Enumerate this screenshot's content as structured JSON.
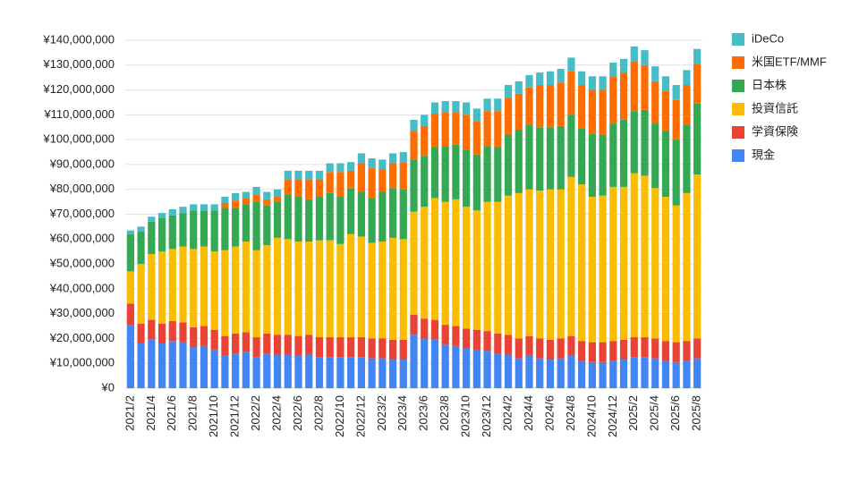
{
  "chart_data": {
    "type": "stacked_bar",
    "categories": [
      "2021/2",
      null,
      "2021/4",
      null,
      "2021/6",
      null,
      "2021/8",
      null,
      "2021/10",
      null,
      "2021/12",
      null,
      "2022/2",
      null,
      "2022/4",
      null,
      "2022/6",
      null,
      "2022/8",
      null,
      "2022/10",
      null,
      "2022/12",
      null,
      "2023/2",
      null,
      "2023/4",
      null,
      "2023/6",
      null,
      "2023/8",
      null,
      "2023/10",
      null,
      "2023/12",
      null,
      "2024/2",
      null,
      "2024/4",
      null,
      "2024/6",
      null,
      "2024/8",
      null,
      "2024/10",
      null,
      "2024/12",
      null,
      "2025/2",
      null,
      "2025/4",
      null,
      "2025/6",
      null,
      "2025/8"
    ],
    "series": [
      {
        "name": "現金",
        "color": "#4285f4",
        "values": [
          25500000,
          18000000,
          19500000,
          18000000,
          19000000,
          18500000,
          16500000,
          17000000,
          15500000,
          13000000,
          14000000,
          14500000,
          12500000,
          14000000,
          13500000,
          13500000,
          13000000,
          13500000,
          12500000,
          12500000,
          12500000,
          12500000,
          12500000,
          12000000,
          12000000,
          11500000,
          11500000,
          21500000,
          20000000,
          19500000,
          17500000,
          17000000,
          16000000,
          15500000,
          15000000,
          14000000,
          13500000,
          12000000,
          13000000,
          12000000,
          11500000,
          12000000,
          13000000,
          11000000,
          10500000,
          10500000,
          11000000,
          11500000,
          12500000,
          12500000,
          12000000,
          11000000,
          10500000,
          11000000,
          12000000
        ]
      },
      {
        "name": "学資保険",
        "color": "#ea4335",
        "values": [
          8500000,
          8000000,
          8000000,
          8000000,
          8000000,
          8000000,
          8000000,
          8000000,
          8000000,
          8000000,
          8000000,
          8000000,
          8000000,
          8000000,
          8000000,
          8000000,
          8000000,
          8000000,
          8000000,
          8000000,
          8000000,
          8000000,
          8000000,
          8000000,
          8000000,
          8000000,
          8000000,
          8000000,
          8000000,
          8000000,
          8000000,
          8000000,
          8000000,
          8000000,
          8000000,
          8000000,
          8000000,
          8000000,
          8000000,
          8000000,
          8000000,
          8000000,
          8000000,
          8000000,
          8000000,
          8000000,
          8000000,
          8000000,
          8000000,
          8000000,
          8000000,
          8000000,
          8000000,
          8000000,
          8000000
        ]
      },
      {
        "name": "投資信託",
        "color": "#fbbc04",
        "values": [
          13000000,
          24000000,
          26500000,
          29000000,
          29000000,
          30500000,
          31500000,
          32000000,
          31500000,
          34500000,
          35000000,
          36500000,
          35000000,
          35500000,
          39000000,
          38500000,
          38000000,
          37500000,
          39000000,
          39000000,
          37500000,
          41500000,
          40500000,
          38500000,
          39000000,
          41000000,
          40500000,
          41500000,
          45000000,
          49000000,
          49500000,
          51000000,
          49000000,
          48000000,
          52000000,
          53000000,
          56000000,
          58500000,
          59000000,
          59500000,
          60500000,
          60000000,
          64000000,
          63000000,
          58500000,
          59000000,
          62000000,
          61500000,
          66000000,
          65000000,
          60500000,
          58000000,
          55000000,
          59500000,
          66000000
        ]
      },
      {
        "name": "日本株",
        "color": "#34a853",
        "values": [
          15000000,
          13000000,
          13000000,
          13500000,
          13500000,
          13500000,
          15500000,
          14500000,
          16500000,
          17000000,
          15500000,
          15000000,
          19500000,
          16000000,
          14500000,
          18000000,
          18000000,
          17000000,
          17500000,
          19000000,
          19000000,
          18500000,
          18000000,
          18000000,
          20000000,
          20000000,
          20000000,
          21000000,
          20500000,
          20500000,
          22500000,
          22000000,
          23000000,
          22500000,
          22500000,
          22000000,
          24500000,
          25500000,
          26000000,
          25500000,
          25000000,
          25500000,
          25000000,
          22500000,
          25500000,
          24500000,
          25500000,
          27000000,
          25000000,
          26500000,
          26000000,
          26500000,
          26500000,
          27500000,
          28500000
        ]
      },
      {
        "name": "米国ETF/MMF",
        "color": "#ff6d01",
        "values": [
          0,
          0,
          0,
          0,
          0,
          0,
          0,
          0,
          0,
          2000000,
          3000000,
          2500000,
          3000000,
          2500000,
          2000000,
          6000000,
          7000000,
          8000000,
          7000000,
          8500000,
          10000000,
          7000000,
          11500000,
          12000000,
          9000000,
          10000000,
          11000000,
          11500000,
          12000000,
          13500000,
          13500000,
          13000000,
          14000000,
          13500000,
          14000000,
          14500000,
          15000000,
          14500000,
          15000000,
          17000000,
          17000000,
          17500000,
          17500000,
          17500000,
          17500000,
          18000000,
          19000000,
          19000000,
          20000000,
          18000000,
          17000000,
          16000000,
          16000000,
          16000000,
          16000000
        ]
      },
      {
        "name": "iDeCo",
        "color": "#46bdc6",
        "values": [
          1500000,
          2000000,
          2000000,
          2000000,
          2500000,
          2500000,
          2500000,
          2500000,
          2500000,
          2500000,
          3000000,
          2500000,
          3000000,
          3000000,
          3000000,
          3500000,
          3500000,
          3500000,
          3500000,
          3500000,
          3500000,
          3500000,
          4000000,
          4000000,
          4000000,
          4000000,
          4000000,
          4500000,
          4500000,
          4500000,
          4500000,
          4500000,
          5000000,
          5000000,
          5000000,
          5000000,
          5000000,
          5000000,
          5000000,
          5000000,
          5500000,
          5500000,
          5500000,
          5500000,
          5500000,
          5500000,
          5500000,
          5500000,
          6000000,
          6000000,
          6000000,
          6000000,
          6000000,
          6000000,
          6000000
        ]
      }
    ],
    "ylim": [
      0,
      140000000
    ],
    "yticks": [
      {
        "value": 0,
        "label": "¥0"
      },
      {
        "value": 10000000,
        "label": "¥10,000,000"
      },
      {
        "value": 20000000,
        "label": "¥20,000,000"
      },
      {
        "value": 30000000,
        "label": "¥30,000,000"
      },
      {
        "value": 40000000,
        "label": "¥40,000,000"
      },
      {
        "value": 50000000,
        "label": "¥50,000,000"
      },
      {
        "value": 60000000,
        "label": "¥60,000,000"
      },
      {
        "value": 70000000,
        "label": "¥70,000,000"
      },
      {
        "value": 80000000,
        "label": "¥80,000,000"
      },
      {
        "value": 90000000,
        "label": "¥90,000,000"
      },
      {
        "value": 100000000,
        "label": "¥100,000,000"
      },
      {
        "value": 110000000,
        "label": "¥110,000,000"
      },
      {
        "value": 120000000,
        "label": "¥120,000,000"
      },
      {
        "value": 130000000,
        "label": "¥130,000,000"
      },
      {
        "value": 140000000,
        "label": "¥140,000,000"
      }
    ],
    "grid": true,
    "legend": "right"
  }
}
